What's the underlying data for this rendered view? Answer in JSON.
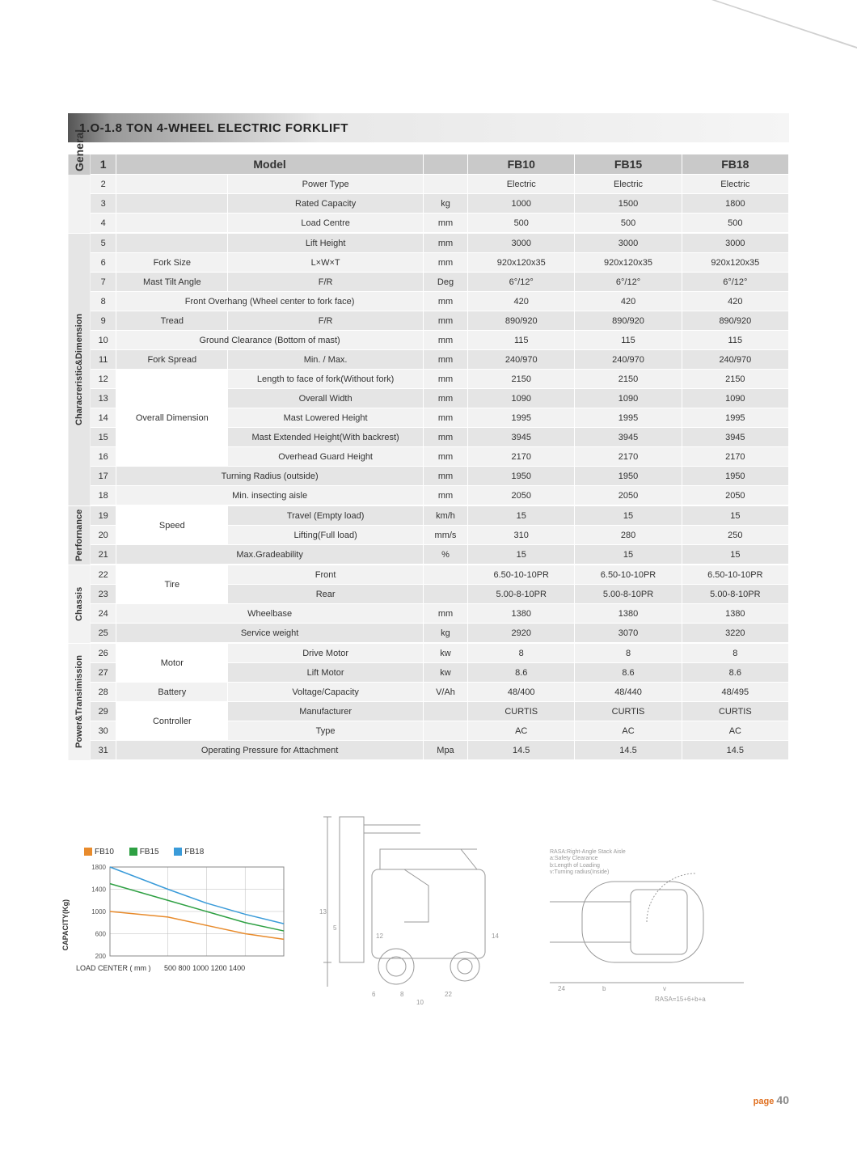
{
  "title": "1.O-1.8 TON 4-WHEEL ELECTRIC FORKLIFT",
  "header": {
    "model": "Model",
    "c1": "FB10",
    "c2": "FB15",
    "c3": "FB18"
  },
  "sections": {
    "general": "General",
    "char": "Characreristic&Dimension",
    "perf": "Perfornance",
    "chassis": "Chassis",
    "power": "Power&Transimission"
  },
  "rows": [
    {
      "n": "2",
      "a": "",
      "b": "Power Type",
      "u": "",
      "v1": "Electric",
      "v2": "Electric",
      "v3": "Electric"
    },
    {
      "n": "3",
      "a": "",
      "b": "Rated Capacity",
      "u": "kg",
      "v1": "1000",
      "v2": "1500",
      "v3": "1800"
    },
    {
      "n": "4",
      "a": "",
      "b": "Load Centre",
      "u": "mm",
      "v1": "500",
      "v2": "500",
      "v3": "500"
    },
    {
      "n": "5",
      "a": "",
      "b": "Lift Height",
      "u": "mm",
      "v1": "3000",
      "v2": "3000",
      "v3": "3000"
    },
    {
      "n": "6",
      "a": "Fork Size",
      "b": "L×W×T",
      "u": "mm",
      "v1": "920x120x35",
      "v2": "920x120x35",
      "v3": "920x120x35"
    },
    {
      "n": "7",
      "a": "Mast Tilt Angle",
      "b": "F/R",
      "u": "Deg",
      "v1": "6°/12°",
      "v2": "6°/12°",
      "v3": "6°/12°"
    },
    {
      "n": "8",
      "a": "",
      "b": "Front Overhang (Wheel center to fork face)",
      "u": "mm",
      "v1": "420",
      "v2": "420",
      "v3": "420",
      "span": true
    },
    {
      "n": "9",
      "a": "Tread",
      "b": "F/R",
      "u": "mm",
      "v1": "890/920",
      "v2": "890/920",
      "v3": "890/920"
    },
    {
      "n": "10",
      "a": "",
      "b": "Ground Clearance (Bottom of mast)",
      "u": "mm",
      "v1": "115",
      "v2": "115",
      "v3": "115",
      "span": true
    },
    {
      "n": "11",
      "a": "Fork Spread",
      "b": "Min. / Max.",
      "u": "mm",
      "v1": "240/970",
      "v2": "240/970",
      "v3": "240/970"
    },
    {
      "n": "12",
      "a": "",
      "b": "Length to face of fork(Without fork)",
      "u": "mm",
      "v1": "2150",
      "v2": "2150",
      "v3": "2150"
    },
    {
      "n": "13",
      "a": "",
      "b": "Overall Width",
      "u": "mm",
      "v1": "1090",
      "v2": "1090",
      "v3": "1090"
    },
    {
      "n": "14",
      "a": "Overall Dimension",
      "b": "Mast Lowered Height",
      "u": "mm",
      "v1": "1995",
      "v2": "1995",
      "v3": "1995"
    },
    {
      "n": "15",
      "a": "",
      "b": "Mast Extended Height(With backrest)",
      "u": "mm",
      "v1": "3945",
      "v2": "3945",
      "v3": "3945"
    },
    {
      "n": "16",
      "a": "",
      "b": "Overhead Guard Height",
      "u": "mm",
      "v1": "2170",
      "v2": "2170",
      "v3": "2170"
    },
    {
      "n": "17",
      "a": "",
      "b": "Turning Radius (outside)",
      "u": "mm",
      "v1": "1950",
      "v2": "1950",
      "v3": "1950",
      "span": true
    },
    {
      "n": "18",
      "a": "",
      "b": "Min. insecting aisle",
      "u": "mm",
      "v1": "2050",
      "v2": "2050",
      "v3": "2050",
      "span": true
    },
    {
      "n": "19",
      "a": "",
      "b": "Travel (Empty load)",
      "u": "km/h",
      "v1": "15",
      "v2": "15",
      "v3": "15"
    },
    {
      "n": "20",
      "a": "Speed",
      "b": "Lifting(Full load)",
      "u": "mm/s",
      "v1": "310",
      "v2": "280",
      "v3": "250"
    },
    {
      "n": "21",
      "a": "",
      "b": "Max.Gradeability",
      "u": "%",
      "v1": "15",
      "v2": "15",
      "v3": "15",
      "span": true
    },
    {
      "n": "22",
      "a": "",
      "b": "Front",
      "u": "",
      "v1": "6.50-10-10PR",
      "v2": "6.50-10-10PR",
      "v3": "6.50-10-10PR"
    },
    {
      "n": "23",
      "a": "Tire",
      "b": "Rear",
      "u": "",
      "v1": "5.00-8-10PR",
      "v2": "5.00-8-10PR",
      "v3": "5.00-8-10PR"
    },
    {
      "n": "24",
      "a": "",
      "b": "Wheelbase",
      "u": "mm",
      "v1": "1380",
      "v2": "1380",
      "v3": "1380",
      "span": true
    },
    {
      "n": "25",
      "a": "",
      "b": "Service weight",
      "u": "kg",
      "v1": "2920",
      "v2": "3070",
      "v3": "3220",
      "span": true
    },
    {
      "n": "26",
      "a": "",
      "b": "Drive Motor",
      "u": "kw",
      "v1": "8",
      "v2": "8",
      "v3": "8"
    },
    {
      "n": "27",
      "a": "Motor",
      "b": "Lift Motor",
      "u": "kw",
      "v1": "8.6",
      "v2": "8.6",
      "v3": "8.6"
    },
    {
      "n": "28",
      "a": "Battery",
      "b": "Voltage/Capacity",
      "u": "V/Ah",
      "v1": "48/400",
      "v2": "48/440",
      "v3": "48/495"
    },
    {
      "n": "29",
      "a": "",
      "b": "Manufacturer",
      "u": "",
      "v1": "CURTIS",
      "v2": "CURTIS",
      "v3": "CURTIS"
    },
    {
      "n": "30",
      "a": "Controller",
      "b": "Type",
      "u": "",
      "v1": "AC",
      "v2": "AC",
      "v3": "AC"
    },
    {
      "n": "31",
      "a": "",
      "b": "Operating Pressure for Attachment",
      "u": "Mpa",
      "v1": "14.5",
      "v2": "14.5",
      "v3": "14.5",
      "span": true
    }
  ],
  "chart": {
    "type": "line",
    "legend": [
      {
        "label": "FB10",
        "color": "#e88b2c"
      },
      {
        "label": "FB15",
        "color": "#2ea043"
      },
      {
        "label": "FB18",
        "color": "#3a9bd9"
      }
    ],
    "ylabel": "CAPACITY(Kg)",
    "xlabel": "LOAD CENTER ( mm )",
    "yticks": [
      200,
      600,
      1000,
      1400,
      1800
    ],
    "xticks": [
      500,
      800,
      1000,
      1200,
      1400
    ],
    "ylim": [
      200,
      1800
    ],
    "xlim": [
      500,
      1400
    ],
    "grid_color": "#bbbbbb",
    "background_color": "#ffffff",
    "series": {
      "FB10": [
        [
          500,
          1000
        ],
        [
          800,
          900
        ],
        [
          1000,
          750
        ],
        [
          1200,
          600
        ],
        [
          1400,
          500
        ]
      ],
      "FB15": [
        [
          500,
          1500
        ],
        [
          800,
          1200
        ],
        [
          1000,
          1000
        ],
        [
          1200,
          800
        ],
        [
          1400,
          650
        ]
      ],
      "FB18": [
        [
          500,
          1800
        ],
        [
          800,
          1400
        ],
        [
          1000,
          1150
        ],
        [
          1200,
          950
        ],
        [
          1400,
          780
        ]
      ]
    }
  },
  "footnotes": {
    "l1": "RASA:Right-Angle Stack Aisle",
    "l2": "a:Safety Clearance",
    "l3": "b:Length of Loading",
    "l4": "v:Turning radius(Inside)",
    "rasa": "RASA=15+6+b+a"
  },
  "dimlabels": {
    "d1": "13",
    "d2": "5",
    "d3": "12",
    "d4": "14",
    "d5": "6",
    "d6": "8",
    "d7": "22",
    "d8": "10",
    "d9": "9",
    "d10": "2",
    "d11": "b",
    "d12": "v",
    "d13": "24",
    "d14": "7"
  },
  "page": {
    "word": "page",
    "num": "40"
  }
}
